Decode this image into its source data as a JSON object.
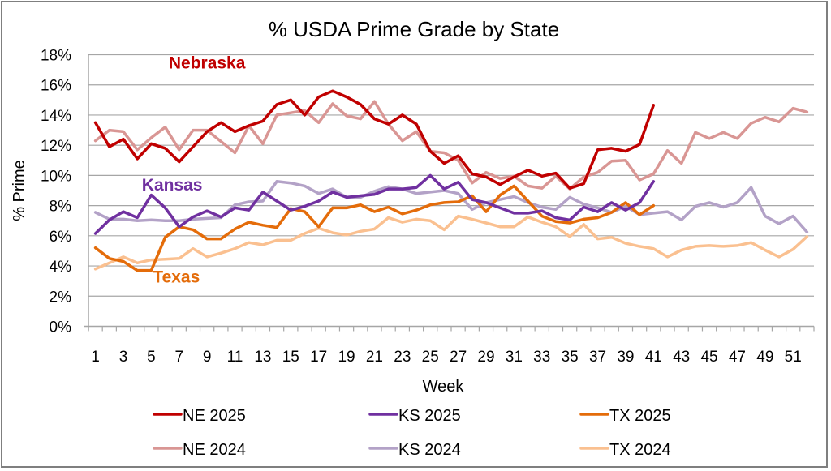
{
  "chart_data": {
    "type": "line",
    "title": "% USDA Prime Grade by State",
    "xlabel": "Week",
    "ylabel": "% Prime",
    "ylim": [
      0,
      18
    ],
    "yticks": [
      "0%",
      "2%",
      "4%",
      "6%",
      "8%",
      "10%",
      "12%",
      "14%",
      "16%",
      "18%"
    ],
    "ytick_values": [
      0,
      2,
      4,
      6,
      8,
      10,
      12,
      14,
      16,
      18
    ],
    "x": [
      1,
      2,
      3,
      4,
      5,
      6,
      7,
      8,
      9,
      10,
      11,
      12,
      13,
      14,
      15,
      16,
      17,
      18,
      19,
      20,
      21,
      22,
      23,
      24,
      25,
      26,
      27,
      28,
      29,
      30,
      31,
      32,
      33,
      34,
      35,
      36,
      37,
      38,
      39,
      40,
      41,
      42,
      43,
      44,
      45,
      46,
      47,
      48,
      49,
      50,
      51,
      52
    ],
    "xtick_labels": [
      "1",
      "3",
      "5",
      "7",
      "9",
      "11",
      "13",
      "15",
      "17",
      "19",
      "21",
      "23",
      "25",
      "27",
      "29",
      "31",
      "33",
      "35",
      "37",
      "39",
      "41",
      "43",
      "45",
      "47",
      "49",
      "51"
    ],
    "grid": true,
    "legend_placement": "bottom",
    "annotations": [
      {
        "text": "Nebraska",
        "color": "#C00000",
        "near_week": 9,
        "near_value": 17.1
      },
      {
        "text": "Kansas",
        "color": "#7030A0",
        "near_week": 6.5,
        "near_value": 9.0
      },
      {
        "text": "Texas",
        "color": "#E46C0A",
        "near_week": 6.8,
        "near_value": 2.9
      }
    ],
    "series": [
      {
        "name": "NE 2025",
        "color": "#C00000",
        "values": [
          13.5,
          11.9,
          12.4,
          11.1,
          12.1,
          11.8,
          10.9,
          11.9,
          12.9,
          13.5,
          12.9,
          13.3,
          13.6,
          14.7,
          15.0,
          14.0,
          15.2,
          15.6,
          15.2,
          14.7,
          13.75,
          13.4,
          14.0,
          13.4,
          11.6,
          10.8,
          11.3,
          10.1,
          9.9,
          9.4,
          9.9,
          10.35,
          9.95,
          10.15,
          9.15,
          9.45,
          11.7,
          11.8,
          11.6,
          12.05,
          14.65
        ]
      },
      {
        "name": "KS 2025",
        "color": "#7030A0",
        "values": [
          6.15,
          7.05,
          7.6,
          7.2,
          8.7,
          7.85,
          6.6,
          7.25,
          7.65,
          7.25,
          7.85,
          7.7,
          8.9,
          8.3,
          7.7,
          7.95,
          8.3,
          8.9,
          8.55,
          8.65,
          8.75,
          9.1,
          9.1,
          9.2,
          10.0,
          9.1,
          9.55,
          8.4,
          8.2,
          7.85,
          7.5,
          7.5,
          7.65,
          7.2,
          7.05,
          7.9,
          7.6,
          8.2,
          7.7,
          8.2,
          9.6
        ]
      },
      {
        "name": "TX 2025",
        "color": "#E46C0A",
        "values": [
          5.2,
          4.5,
          4.3,
          3.7,
          3.7,
          5.9,
          6.6,
          6.4,
          5.8,
          5.8,
          6.45,
          6.9,
          6.7,
          6.55,
          7.8,
          7.6,
          6.6,
          7.85,
          7.85,
          8.05,
          7.6,
          7.9,
          7.45,
          7.7,
          8.05,
          8.2,
          8.25,
          8.65,
          7.6,
          8.7,
          9.3,
          8.3,
          7.3,
          6.95,
          6.85,
          7.1,
          7.2,
          7.55,
          8.2,
          7.4,
          8.0
        ]
      },
      {
        "name": "NE 2024",
        "color": "#D99694",
        "values": [
          12.3,
          13.0,
          12.9,
          11.7,
          12.5,
          13.2,
          11.7,
          13.0,
          13.0,
          12.25,
          11.5,
          13.3,
          12.1,
          14.0,
          14.15,
          14.3,
          13.5,
          14.75,
          13.95,
          13.75,
          14.9,
          13.4,
          12.3,
          12.9,
          11.6,
          11.5,
          11.0,
          9.5,
          10.2,
          9.8,
          9.95,
          9.3,
          9.15,
          9.95,
          9.1,
          9.9,
          10.2,
          10.95,
          11.0,
          9.7,
          10.1,
          11.65,
          10.8,
          12.85,
          12.45,
          12.85,
          12.45,
          13.45,
          13.85,
          13.55,
          14.45,
          14.2
        ]
      },
      {
        "name": "KS 2024",
        "color": "#B3A2C7",
        "values": [
          7.55,
          7.1,
          7.1,
          7.0,
          7.05,
          7.0,
          7.0,
          7.1,
          7.15,
          7.2,
          8.05,
          8.25,
          8.3,
          9.6,
          9.5,
          9.3,
          8.8,
          9.1,
          8.55,
          8.55,
          8.95,
          9.25,
          9.1,
          8.8,
          8.9,
          9.0,
          8.8,
          7.75,
          8.2,
          8.4,
          8.6,
          8.2,
          7.9,
          7.75,
          8.55,
          8.1,
          7.85,
          7.55,
          7.95,
          7.4,
          7.5,
          7.6,
          7.05,
          7.95,
          8.2,
          7.9,
          8.2,
          9.2,
          7.3,
          6.8,
          7.3,
          6.25
        ]
      },
      {
        "name": "TX 2024",
        "color": "#FAC090",
        "values": [
          3.8,
          4.2,
          4.6,
          4.2,
          4.4,
          4.45,
          4.5,
          5.15,
          4.6,
          4.85,
          5.15,
          5.55,
          5.4,
          5.7,
          5.7,
          6.15,
          6.5,
          6.2,
          6.05,
          6.3,
          6.45,
          7.2,
          6.9,
          7.1,
          7.0,
          6.4,
          7.3,
          7.1,
          6.85,
          6.6,
          6.6,
          7.25,
          6.9,
          6.6,
          5.95,
          6.75,
          5.8,
          5.9,
          5.5,
          5.3,
          5.15,
          4.6,
          5.05,
          5.3,
          5.35,
          5.3,
          5.35,
          5.55,
          5.05,
          4.6,
          5.1,
          5.95
        ]
      }
    ],
    "legend": [
      [
        "NE 2025",
        "KS 2025",
        "TX 2025"
      ],
      [
        "NE 2024",
        "KS 2024",
        "TX 2024"
      ]
    ]
  }
}
